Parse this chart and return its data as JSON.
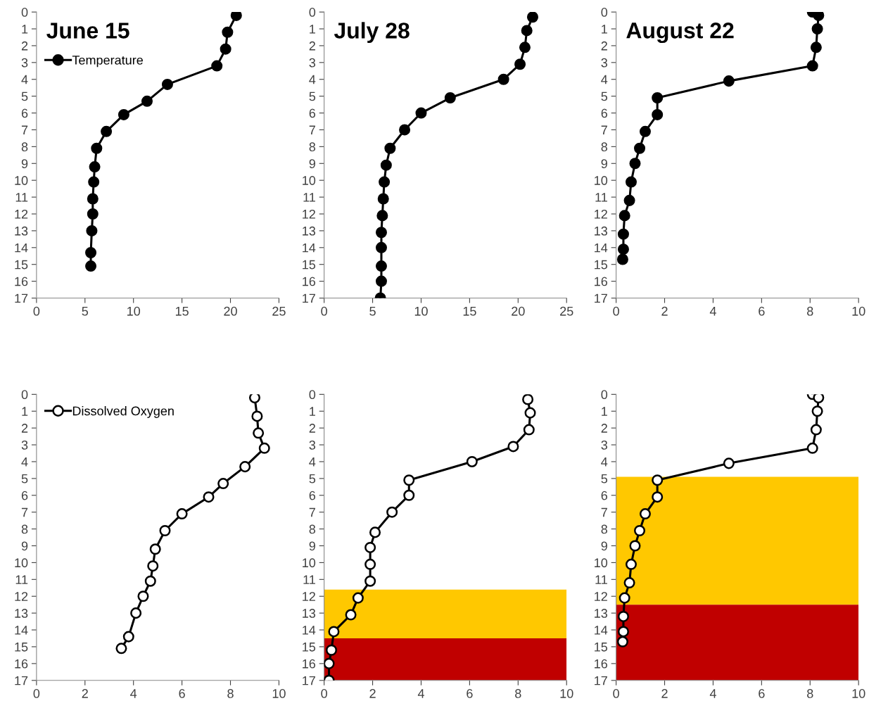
{
  "chart_data": [
    {
      "type": "line",
      "title": "June 15",
      "legend": "top left",
      "marker": "circle",
      "line_style": "solid",
      "xlim": [
        0,
        25
      ],
      "xticks": [
        0,
        5,
        10,
        15,
        20,
        25
      ],
      "ylim": [
        17,
        0
      ],
      "yticks": [
        0,
        1,
        2,
        3,
        4,
        5,
        6,
        7,
        8,
        9,
        10,
        11,
        12,
        13,
        14,
        15,
        16,
        17
      ],
      "series": [
        {
          "name": "Temperature",
          "color": "#000000",
          "x": [
            20.6,
            19.7,
            19.5,
            18.6,
            13.5,
            11.4,
            9.0,
            7.2,
            6.2,
            6.0,
            5.9,
            5.8,
            5.8,
            5.7,
            5.6,
            5.6
          ],
          "values": [
            0.2,
            1.2,
            2.2,
            3.2,
            4.3,
            5.3,
            6.1,
            7.1,
            8.1,
            9.2,
            10.1,
            11.1,
            12.0,
            13.0,
            14.3,
            15.1
          ]
        }
      ]
    },
    {
      "type": "line",
      "title": "July 28",
      "marker": "circle",
      "line_style": "solid",
      "xlim": [
        0,
        25
      ],
      "xticks": [
        0,
        5,
        10,
        15,
        20,
        25
      ],
      "ylim": [
        17,
        0
      ],
      "yticks": [
        0,
        1,
        2,
        3,
        4,
        5,
        6,
        7,
        8,
        9,
        10,
        11,
        12,
        13,
        14,
        15,
        16,
        17
      ],
      "series": [
        {
          "color": "#000000",
          "x": [
            21.5,
            20.9,
            20.7,
            20.2,
            18.5,
            13.0,
            10.0,
            8.3,
            6.8,
            6.4,
            6.2,
            6.1,
            6.0,
            5.9,
            5.9,
            5.9,
            5.9,
            5.8
          ],
          "values": [
            0.3,
            1.1,
            2.1,
            3.1,
            4.0,
            5.1,
            6.0,
            7.0,
            8.1,
            9.1,
            10.1,
            11.1,
            12.1,
            13.1,
            14.0,
            15.1,
            16.0,
            17.0
          ]
        }
      ]
    },
    {
      "type": "line",
      "title": "August 22",
      "marker": "circle",
      "line_style": "solid",
      "xlim": [
        0,
        10
      ],
      "xticks": [
        0,
        2,
        4,
        6,
        8,
        10
      ],
      "ylim": [
        17,
        0
      ],
      "yticks": [
        0,
        1,
        2,
        3,
        4,
        5,
        6,
        7,
        8,
        9,
        10,
        11,
        12,
        13,
        14,
        15,
        16,
        17
      ],
      "series": [
        {
          "color": "#000000",
          "x": [
            8.1,
            8.35,
            8.3,
            8.25,
            8.1,
            4.65,
            1.7,
            1.7,
            1.2,
            0.97,
            0.78,
            0.62,
            0.55,
            0.35,
            0.3,
            0.3,
            0.27
          ],
          "values": [
            0.0,
            0.2,
            1.0,
            2.1,
            3.2,
            4.1,
            5.1,
            6.1,
            7.1,
            8.1,
            9.0,
            10.1,
            11.2,
            12.1,
            13.2,
            14.1,
            14.7
          ]
        }
      ]
    },
    {
      "type": "line",
      "legend": "top left",
      "marker": "circle",
      "line_style": "solid",
      "xlim": [
        0,
        10
      ],
      "xticks": [
        0,
        2,
        4,
        6,
        8,
        10
      ],
      "ylim": [
        17,
        0
      ],
      "yticks": [
        0,
        1,
        2,
        3,
        4,
        5,
        6,
        7,
        8,
        9,
        10,
        11,
        12,
        13,
        14,
        15,
        16,
        17
      ],
      "series": [
        {
          "name": "Dissolved Oxygen",
          "color": "#000000",
          "colors": [
            "#ffffff",
            "#ffffff",
            "#ffffff",
            "#ffffff",
            "#ffffff",
            "#ffffff",
            "#ffffff",
            "#ffffff",
            "#ffffff",
            "#ffffff",
            "#ffffff",
            "#ffffff",
            "#ffffff",
            "#ffffff",
            "#ffffff",
            "#ffffff"
          ],
          "x": [
            9.0,
            9.1,
            9.15,
            9.4,
            8.6,
            7.7,
            7.1,
            6.0,
            5.3,
            4.9,
            4.8,
            4.7,
            4.4,
            4.1,
            3.8,
            3.5
          ],
          "values": [
            0.2,
            1.3,
            2.3,
            3.2,
            4.3,
            5.3,
            6.1,
            7.1,
            8.1,
            9.2,
            10.2,
            11.1,
            12.0,
            13.0,
            14.4,
            15.1
          ]
        }
      ]
    },
    {
      "type": "line",
      "marker": "circle",
      "line_style": "solid",
      "xlim": [
        0,
        10
      ],
      "xticks": [
        0,
        2,
        4,
        6,
        8,
        10
      ],
      "ylim": [
        17,
        0
      ],
      "yticks": [
        0,
        1,
        2,
        3,
        4,
        5,
        6,
        7,
        8,
        9,
        10,
        11,
        12,
        13,
        14,
        15,
        16,
        17
      ],
      "bands": [
        {
          "axis": "y",
          "from": 11.6,
          "to": 14.5,
          "color": "#ffc800"
        },
        {
          "axis": "y",
          "from": 14.5,
          "to": 17,
          "color": "#c00000"
        }
      ],
      "series": [
        {
          "color": "#000000",
          "colors": [
            "#ffffff",
            "#ffffff",
            "#ffffff",
            "#ffffff",
            "#ffffff",
            "#ffffff",
            "#ffffff",
            "#ffffff",
            "#ffffff",
            "#ffffff",
            "#ffffff",
            "#ffffff",
            "#ffffff",
            "#ffffff",
            "#ffffff",
            "#ffffff",
            "#ffffff",
            "#ffffff"
          ],
          "x": [
            8.4,
            8.5,
            8.45,
            7.8,
            6.1,
            3.5,
            3.5,
            2.8,
            2.1,
            1.9,
            1.9,
            1.9,
            1.4,
            1.1,
            0.4,
            0.3,
            0.2,
            0.2
          ],
          "values": [
            0.3,
            1.1,
            2.1,
            3.1,
            4.0,
            5.1,
            6.0,
            7.0,
            8.2,
            9.1,
            10.1,
            11.1,
            12.1,
            13.1,
            14.1,
            15.2,
            16.0,
            17.0
          ]
        }
      ]
    },
    {
      "type": "line",
      "marker": "circle",
      "line_style": "solid",
      "xlim": [
        0,
        10
      ],
      "xticks": [
        0,
        2,
        4,
        6,
        8,
        10
      ],
      "ylim": [
        17,
        0
      ],
      "yticks": [
        0,
        1,
        2,
        3,
        4,
        5,
        6,
        7,
        8,
        9,
        10,
        11,
        12,
        13,
        14,
        15,
        16,
        17
      ],
      "bands": [
        {
          "axis": "y",
          "from": 4.9,
          "to": 12.5,
          "color": "#ffc800"
        },
        {
          "axis": "y",
          "from": 12.5,
          "to": 17,
          "color": "#c00000"
        }
      ],
      "series": [
        {
          "color": "#000000",
          "colors": [
            "#ffffff",
            "#ffffff",
            "#ffffff",
            "#ffffff",
            "#ffffff",
            "#ffffff",
            "#ffffff",
            "#ffffff",
            "#ffffff",
            "#ffffff",
            "#ffffff",
            "#ffffff",
            "#ffffff",
            "#ffffff",
            "#ffffff",
            "#ffffff",
            "#ffffff"
          ],
          "x": [
            8.1,
            8.35,
            8.3,
            8.25,
            8.1,
            4.65,
            1.7,
            1.7,
            1.2,
            0.97,
            0.78,
            0.62,
            0.55,
            0.35,
            0.3,
            0.3,
            0.27
          ],
          "values": [
            0.0,
            0.2,
            1.0,
            2.1,
            3.2,
            4.1,
            5.1,
            6.1,
            7.1,
            8.1,
            9.0,
            10.1,
            11.2,
            12.1,
            13.2,
            14.1,
            14.7
          ]
        }
      ]
    }
  ]
}
